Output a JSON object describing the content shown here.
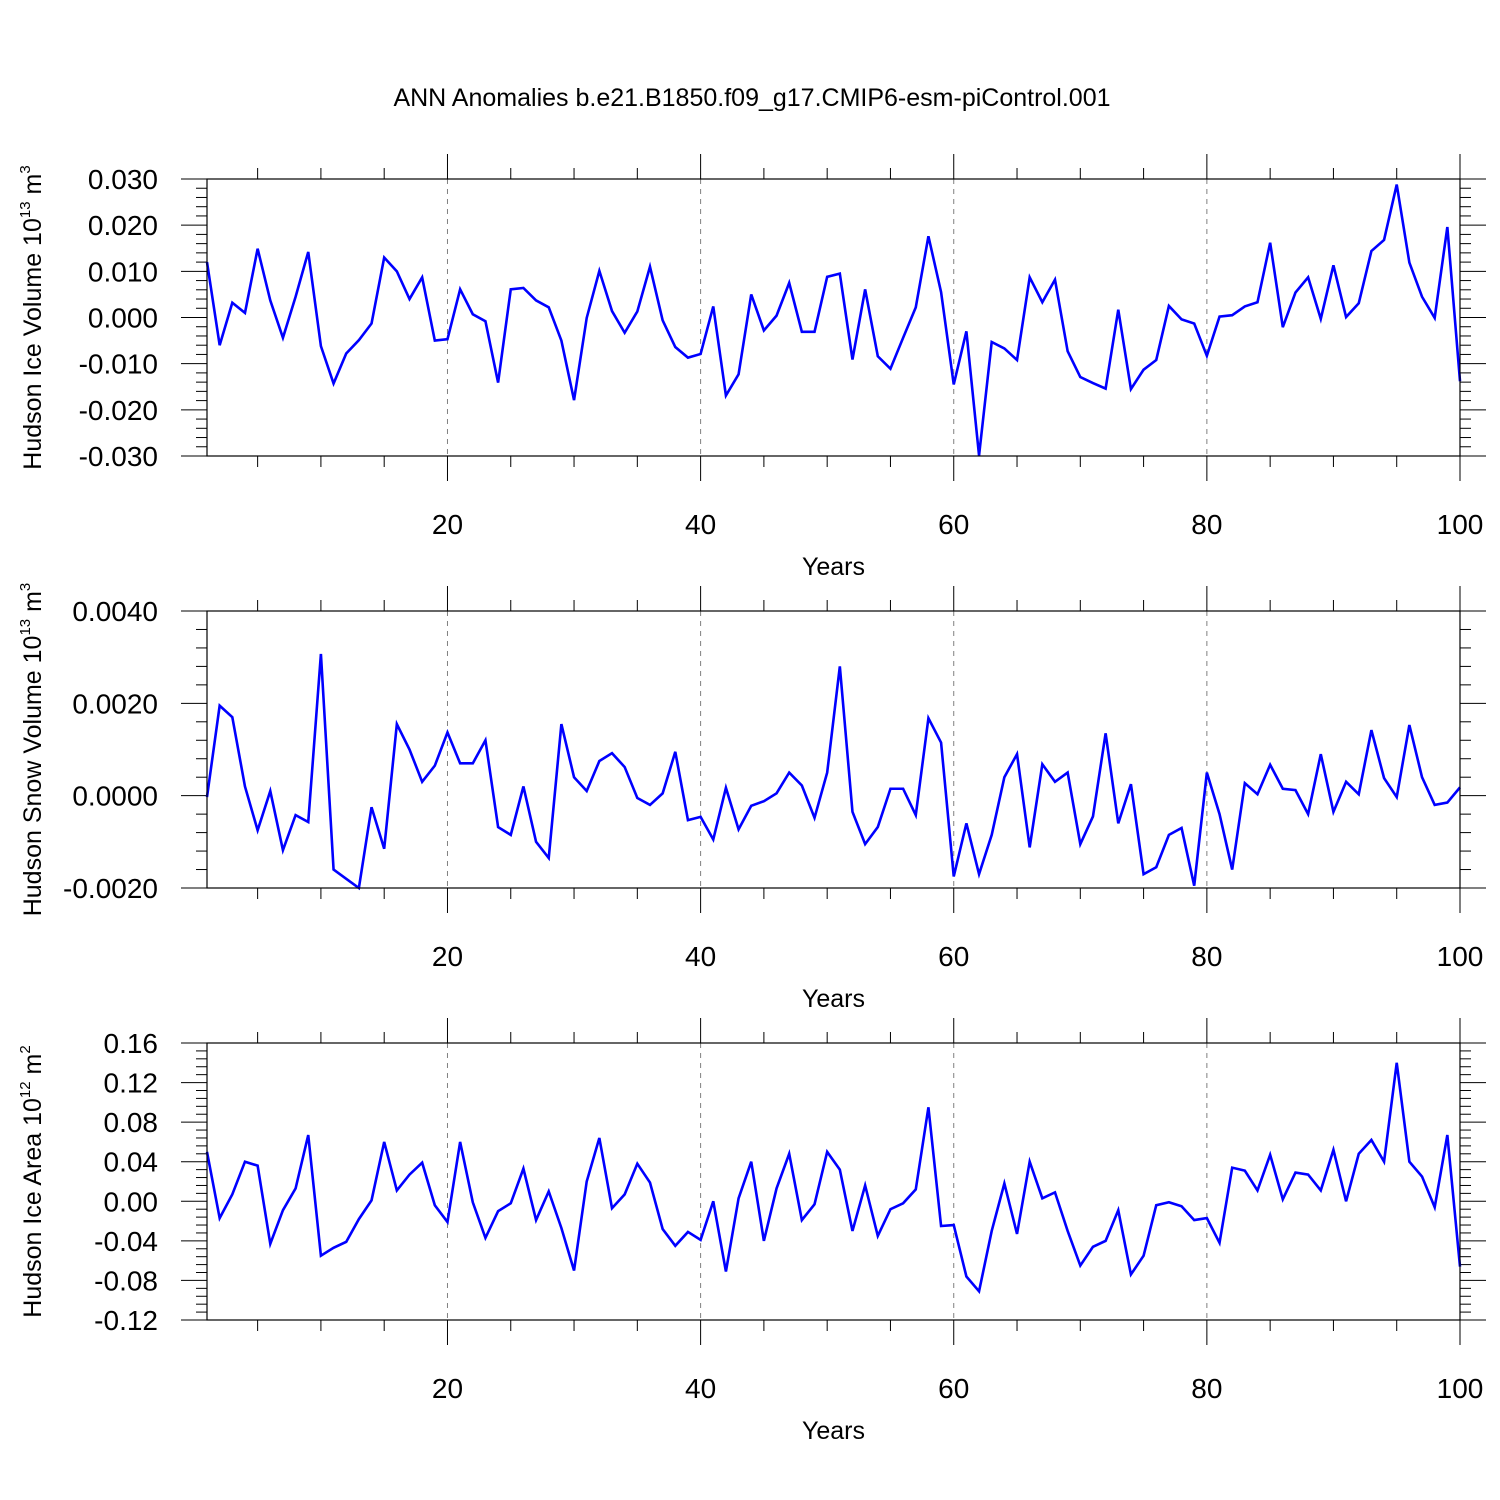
{
  "figure": {
    "title": "ANN Anomalies b.e21.B1850.f09_g17.CMIP6-esm-piControl.001",
    "line_color": "#0000ff"
  },
  "chart_data": [
    {
      "type": "line",
      "ylabel": {
        "text": "Hudson Ice Volume 10",
        "exp": "13",
        "unit": " m",
        "unit_exp": "3"
      },
      "xlabel": "Years",
      "xlim": [
        1,
        100
      ],
      "ylim": [
        -0.03,
        0.03
      ],
      "xticks": [
        20,
        40,
        60,
        80,
        100
      ],
      "xtick_labels": [
        "20",
        "40",
        "60",
        "80",
        "100"
      ],
      "yticks": [
        0.03,
        0.02,
        0.01,
        0.0,
        -0.01,
        -0.02,
        -0.03
      ],
      "ytick_labels": [
        "0.030",
        "0.020",
        "0.010",
        "0.000",
        "-0.010",
        "-0.020",
        "-0.030"
      ],
      "grid": "vertical dashed at major x ticks",
      "series": [
        {
          "x_start": 1,
          "values": [
            0.012,
            -0.006,
            0.0032,
            0.001,
            0.0149,
            0.0037,
            -0.0044,
            0.0045,
            0.0142,
            -0.0062,
            -0.0143,
            -0.0078,
            -0.0049,
            -0.0013,
            0.013,
            0.01,
            0.004,
            0.0087,
            -0.005,
            -0.0047,
            0.0061,
            0.0007,
            -0.0008,
            -0.0141,
            0.0061,
            0.0064,
            0.0037,
            0.0022,
            -0.005,
            -0.0179,
            -0.0001,
            0.0101,
            0.0014,
            -0.0033,
            0.0013,
            0.011,
            -0.0006,
            -0.0064,
            -0.0087,
            -0.0079,
            0.0024,
            -0.0169,
            -0.0123,
            0.005,
            -0.0028,
            0.0004,
            0.0075,
            -0.0031,
            -0.0031,
            0.0088,
            0.0095,
            -0.0091,
            0.0061,
            -0.0084,
            -0.0111,
            -0.0044,
            0.0022,
            0.0176,
            0.0055,
            -0.0145,
            -0.003,
            -0.0299,
            -0.0053,
            -0.0067,
            -0.0092,
            0.0087,
            0.0033,
            0.0082,
            -0.0073,
            -0.0129,
            -0.0142,
            -0.0154,
            0.0017,
            -0.0155,
            -0.0113,
            -0.0092,
            0.0025,
            -0.0004,
            -0.0013,
            -0.0083,
            0.0002,
            0.0005,
            0.0024,
            0.0033,
            0.0162,
            -0.0021,
            0.0054,
            0.0087,
            -0.0003,
            0.0113,
            0.0001,
            0.0031,
            0.0144,
            0.0168,
            0.0288,
            0.0119,
            0.0045,
            -0.0001,
            0.0196,
            -0.0138
          ]
        }
      ]
    },
    {
      "type": "line",
      "ylabel": {
        "text": "Hudson Snow Volume 10",
        "exp": "13",
        "unit": " m",
        "unit_exp": "3"
      },
      "xlabel": "Years",
      "xlim": [
        1,
        100
      ],
      "ylim": [
        -0.002,
        0.004
      ],
      "xticks": [
        20,
        40,
        60,
        80,
        100
      ],
      "xtick_labels": [
        "20",
        "40",
        "60",
        "80",
        "100"
      ],
      "yticks": [
        0.004,
        0.002,
        0.0,
        -0.002
      ],
      "ytick_labels": [
        "0.0040",
        "0.0020",
        "0.0000",
        "-0.0020"
      ],
      "grid": "vertical dashed at major x ticks",
      "series": [
        {
          "x_start": 1,
          "values": [
            -3e-05,
            0.00195,
            0.0017,
            0.0002,
            -0.00075,
            0.0001,
            -0.00118,
            -0.00042,
            -0.00057,
            0.00307,
            -0.0016,
            -0.0018,
            -0.002,
            -0.00025,
            -0.00115,
            0.00155,
            0.001,
            0.0003,
            0.00065,
            0.00137,
            0.0007,
            0.0007,
            0.0012,
            -0.00068,
            -0.00085,
            0.0002,
            -0.001,
            -0.00135,
            0.00155,
            0.0004,
            0.0001,
            0.00075,
            0.00092,
            0.00062,
            -5e-05,
            -0.0002,
            5e-05,
            0.00095,
            -0.00053,
            -0.00046,
            -0.00095,
            0.00017,
            -0.00073,
            -0.00022,
            -0.00012,
            5e-05,
            0.0005,
            0.00022,
            -0.00048,
            0.0005,
            0.0028,
            -0.00035,
            -0.00105,
            -0.00068,
            0.00015,
            0.00015,
            -0.00042,
            0.00168,
            0.00115,
            -0.00175,
            -0.0006,
            -0.0017,
            -0.00085,
            0.0004,
            0.0009,
            -0.00112,
            0.00068,
            0.0003,
            0.0005,
            -0.00105,
            -0.00045,
            0.00135,
            -0.0006,
            0.00025,
            -0.0017,
            -0.00155,
            -0.00085,
            -0.0007,
            -0.00195,
            0.0005,
            -0.0004,
            -0.0016,
            0.00027,
            3e-05,
            0.00067,
            0.00015,
            0.00012,
            -0.0004,
            0.0009,
            -0.00035,
            0.0003,
            3e-05,
            0.00142,
            0.00038,
            -3e-05,
            0.00153,
            0.0004,
            -0.0002,
            -0.00015,
            0.00018
          ]
        }
      ]
    },
    {
      "type": "line",
      "ylabel": {
        "text": "Hudson Ice Area 10",
        "exp": "12",
        "unit": " m",
        "unit_exp": "2"
      },
      "xlabel": "Years",
      "xlim": [
        1,
        100
      ],
      "ylim": [
        -0.12,
        0.16
      ],
      "xticks": [
        20,
        40,
        60,
        80,
        100
      ],
      "xtick_labels": [
        "20",
        "40",
        "60",
        "80",
        "100"
      ],
      "yticks": [
        0.16,
        0.12,
        0.08,
        0.04,
        0.0,
        -0.04,
        -0.08,
        -0.12
      ],
      "ytick_labels": [
        "0.16",
        "0.12",
        "0.08",
        "0.04",
        "0.00",
        "-0.04",
        "-0.08",
        "-0.12"
      ],
      "grid": "vertical dashed at major x ticks",
      "series": [
        {
          "x_start": 1,
          "values": [
            0.05,
            -0.017,
            0.007,
            0.04,
            0.036,
            -0.043,
            -0.009,
            0.013,
            0.067,
            -0.055,
            -0.047,
            -0.041,
            -0.018,
            0.001,
            0.06,
            0.011,
            0.027,
            0.039,
            -0.004,
            -0.021,
            0.06,
            -0.001,
            -0.037,
            -0.01,
            -0.002,
            0.033,
            -0.019,
            0.01,
            -0.027,
            -0.07,
            0.02,
            0.064,
            -0.007,
            0.007,
            0.038,
            0.019,
            -0.028,
            -0.045,
            -0.031,
            -0.039,
            0.0,
            -0.071,
            0.003,
            0.04,
            -0.04,
            0.013,
            0.048,
            -0.019,
            -0.003,
            0.05,
            0.032,
            -0.03,
            0.016,
            -0.035,
            -0.008,
            -0.002,
            0.012,
            0.095,
            -0.025,
            -0.024,
            -0.076,
            -0.091,
            -0.03,
            0.018,
            -0.033,
            0.04,
            0.003,
            0.009,
            -0.03,
            -0.065,
            -0.046,
            -0.04,
            -0.009,
            -0.074,
            -0.055,
            -0.004,
            -0.001,
            -0.005,
            -0.019,
            -0.017,
            -0.042,
            0.034,
            0.031,
            0.011,
            0.047,
            0.002,
            0.029,
            0.027,
            0.011,
            0.052,
            0.0,
            0.048,
            0.062,
            0.04,
            0.14,
            0.04,
            0.025,
            -0.006,
            0.067,
            -0.066
          ]
        }
      ]
    }
  ]
}
